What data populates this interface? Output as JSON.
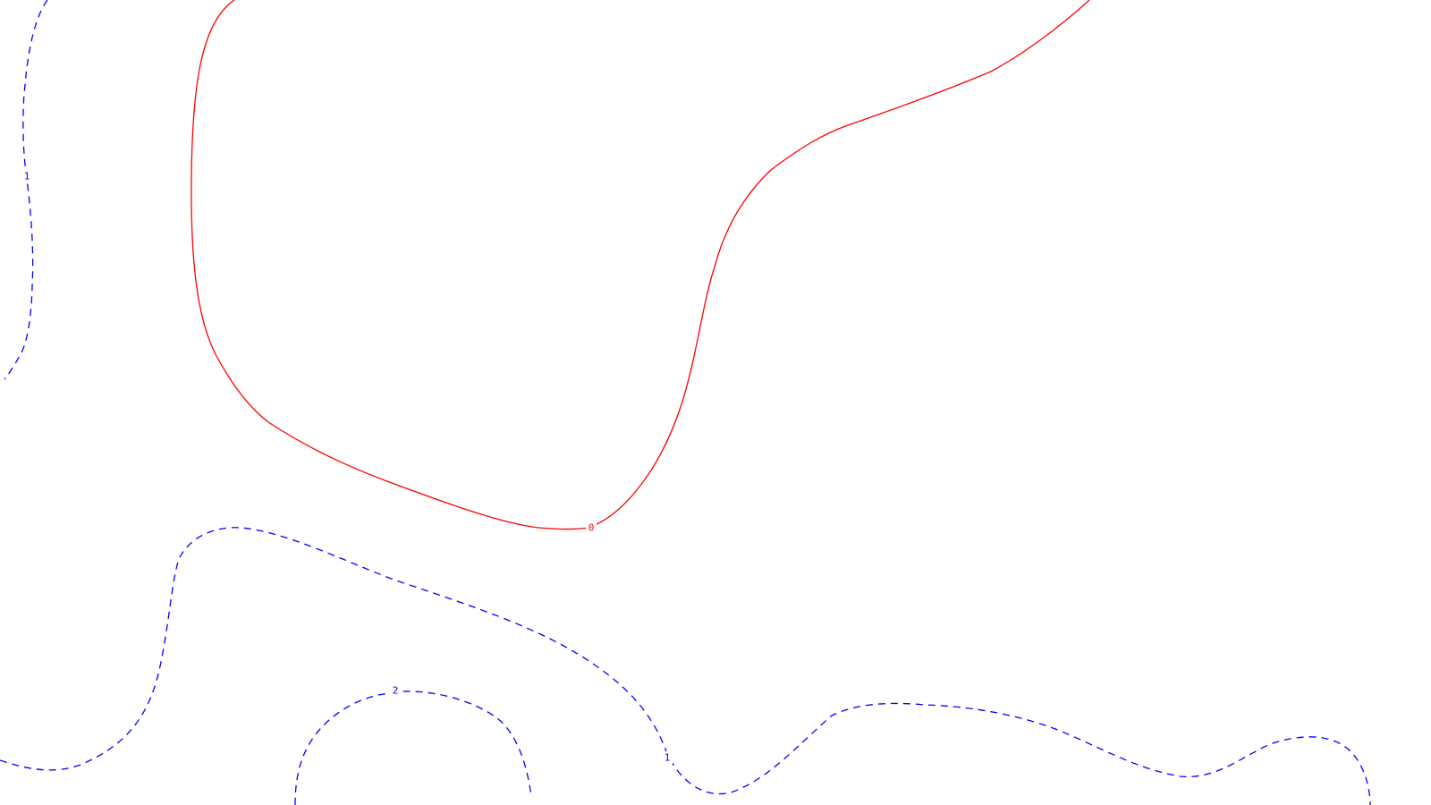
{
  "contours": [
    {
      "id": "zero-contour",
      "level": "0",
      "color": "#ff0000",
      "dashed": false
    },
    {
      "id": "left-edge-contour",
      "level": "1",
      "color": "#0000ff",
      "dashed": true
    },
    {
      "id": "bottom-wave-contour",
      "level": "1",
      "color": "#0000ff",
      "dashed": true
    },
    {
      "id": "bottom-arc-contour",
      "level": "2",
      "color": "#0000ff",
      "dashed": true
    }
  ]
}
